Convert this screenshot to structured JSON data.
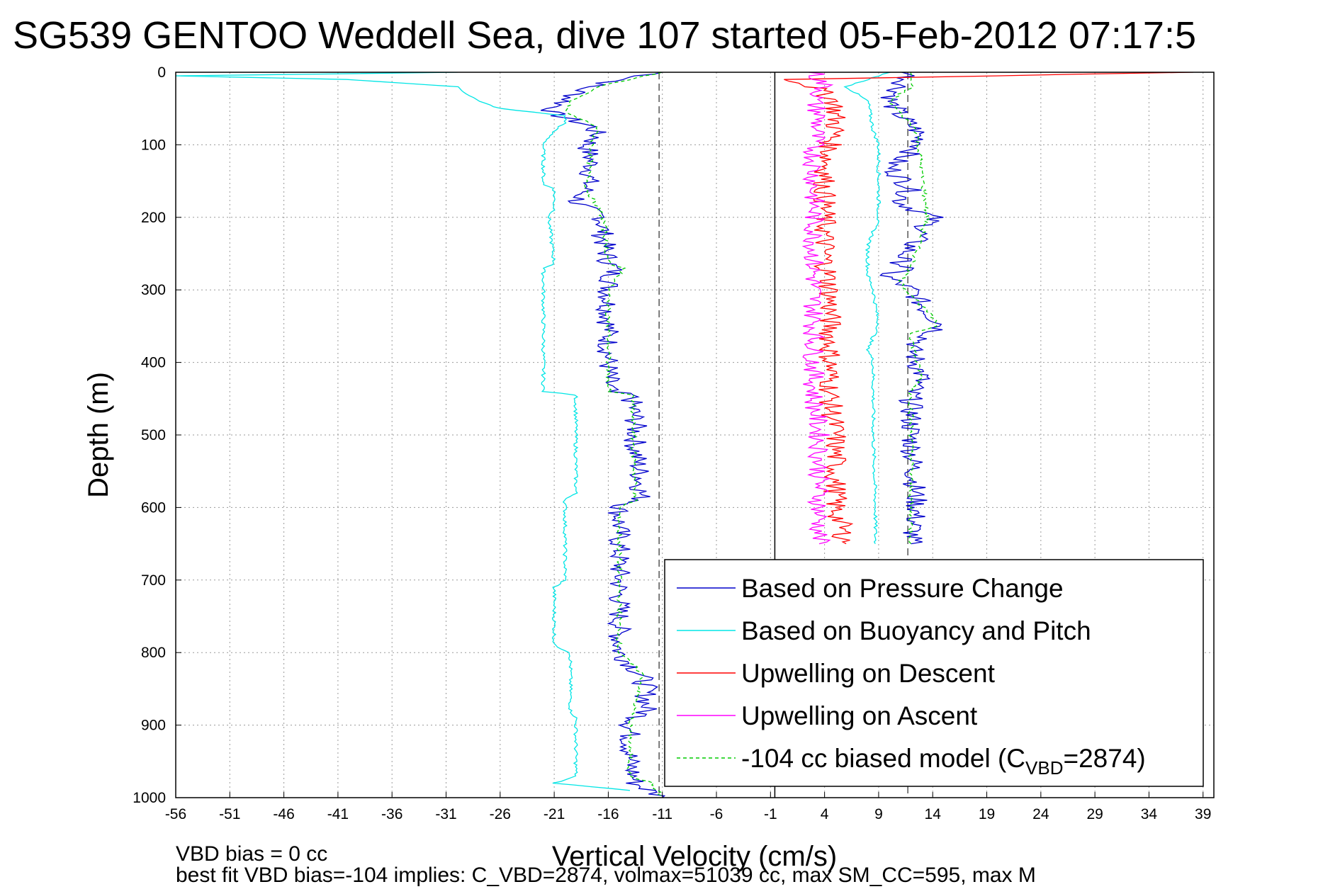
{
  "chart_data": {
    "type": "line",
    "title": "SG539 GENTOO Weddell Sea, dive 107 started 05-Feb-2012 07:17:5",
    "xlabel": "Vertical Velocity (cm/s)",
    "ylabel": "Depth (m)",
    "xlim": [
      -56,
      40
    ],
    "ylim": [
      1000,
      0
    ],
    "y_reversed": true,
    "xticks": [
      -56,
      -51,
      -46,
      -41,
      -36,
      -31,
      -26,
      -21,
      -16,
      -11,
      -6,
      -1,
      4,
      9,
      14,
      19,
      24,
      29,
      34,
      39
    ],
    "yticks": [
      0,
      100,
      200,
      300,
      400,
      500,
      600,
      700,
      800,
      900,
      1000
    ],
    "grid": true,
    "legend_position": "bottom-right",
    "colors": {
      "pressure": "#0000cc",
      "buoyancy": "#00e5e5",
      "descent": "#ff0000",
      "ascent": "#ff00ff",
      "model": "#00cc00",
      "reference": "#555555"
    },
    "reference_lines": [
      {
        "x": -11.3,
        "style": "dashed"
      },
      {
        "x": -0.6,
        "style": "solid"
      },
      {
        "x": 11.7,
        "style": "dashed"
      }
    ],
    "series": [
      {
        "name": "Based on Pressure Change",
        "color": "#0000cc",
        "depth": [
          0,
          20,
          40,
          55,
          75,
          90,
          100,
          130,
          160,
          180,
          200,
          230,
          260,
          270,
          300,
          350,
          400,
          440,
          445,
          480,
          520,
          560,
          590,
          600,
          650,
          700,
          750,
          800,
          830,
          850,
          880,
          900,
          950,
          980,
          1000
        ],
        "velocity": [
          -11,
          -18,
          -20,
          -21.5,
          -17.5,
          -17,
          -18,
          -17.5,
          -18,
          -19,
          -16.5,
          -16.5,
          -16,
          -15.5,
          -16,
          -16,
          -16,
          -16,
          -14,
          -13.5,
          -13.5,
          -13,
          -13,
          -15,
          -15,
          -15,
          -15,
          -15,
          -13,
          -12.5,
          -12.5,
          -14,
          -14,
          -13.5,
          -11
        ],
        "depth_ascent": [
          0,
          20,
          40,
          60,
          80,
          100,
          130,
          160,
          180,
          200,
          230,
          260,
          270,
          280,
          300,
          330,
          350,
          380,
          400,
          420,
          440,
          500,
          600,
          650
        ],
        "velocity_ascent": [
          12,
          11,
          10,
          11,
          12.5,
          13,
          10,
          12,
          11,
          14,
          12.5,
          11,
          11.5,
          9.5,
          12,
          13.5,
          15,
          12,
          12.5,
          13,
          12,
          12,
          12.5,
          12
        ]
      },
      {
        "name": "Based on Buoyancy and Pitch",
        "color": "#00e5e5",
        "depth": [
          0,
          5,
          10,
          20,
          30,
          40,
          50,
          60,
          70,
          80,
          100,
          155,
          160,
          190,
          200,
          265,
          270,
          300,
          400,
          440,
          445,
          500,
          580,
          590,
          600,
          700,
          710,
          790,
          800,
          880,
          890,
          970,
          980,
          990
        ],
        "velocity": [
          -30,
          -56,
          -40,
          -30,
          -29,
          -28,
          -26,
          -20,
          -20,
          -21,
          -22,
          -22,
          -21,
          -21,
          -21.5,
          -21,
          -22,
          -22,
          -22,
          -22,
          -19,
          -19,
          -19,
          -20,
          -20,
          -20,
          -21,
          -21,
          -19.5,
          -19.5,
          -19,
          -19,
          -21,
          -14
        ],
        "depth_ascent": [
          0,
          20,
          40,
          80,
          100,
          130,
          150,
          180,
          200,
          220,
          240,
          260,
          280,
          300,
          350,
          380,
          400,
          500,
          600,
          650
        ],
        "velocity_ascent": [
          10,
          6,
          8,
          8.5,
          9,
          9,
          9,
          9,
          9,
          8.5,
          8,
          8,
          8,
          8.5,
          9,
          8,
          8.5,
          8.5,
          8.7,
          8.7
        ]
      },
      {
        "name": "Upwelling on Descent",
        "color": "#ff0000",
        "depth": [
          0,
          10,
          20,
          40,
          80,
          100,
          150,
          200,
          250,
          300,
          350,
          400,
          450,
          500,
          550,
          600,
          650
        ],
        "velocity": [
          38,
          1,
          3,
          5,
          5,
          4.5,
          4,
          4,
          4,
          4.5,
          4.5,
          4.5,
          4.5,
          5,
          5,
          5,
          6
        ]
      },
      {
        "name": "Upwelling on Ascent",
        "color": "#ff00ff",
        "depth": [
          0,
          20,
          40,
          60,
          100,
          150,
          200,
          250,
          300,
          350,
          400,
          450,
          500,
          550,
          600,
          650
        ],
        "velocity": [
          3,
          4,
          3,
          3.5,
          3,
          3,
          3,
          3,
          3,
          3,
          3,
          3,
          3.5,
          3.5,
          3.5,
          3.5
        ]
      },
      {
        "name": "-104 cc biased model (C",
        "name_subscript": "VBD",
        "name_suffix": "=2874)",
        "color": "#00cc00",
        "depth": [
          0,
          20,
          40,
          55,
          75,
          100,
          160,
          200,
          265,
          270,
          300,
          440,
          445,
          590,
          600,
          800,
          830,
          900,
          970,
          980,
          1000
        ],
        "velocity": [
          -11,
          -17,
          -19.5,
          -20,
          -17,
          -17.5,
          -18,
          -16.5,
          -16,
          -14.5,
          -16,
          -16,
          -13.8,
          -13.5,
          -15,
          -15,
          -12.8,
          -14,
          -14,
          -12,
          -11
        ],
        "depth_ascent": [
          0,
          20,
          40,
          80,
          200,
          270,
          290,
          330,
          350,
          360,
          400,
          420,
          440,
          650
        ],
        "velocity_ascent": [
          12,
          12,
          10,
          12.5,
          13.5,
          12,
          11,
          13.5,
          14.5,
          12,
          12.5,
          13,
          12,
          12
        ]
      }
    ]
  },
  "footer": {
    "line1": "VBD bias = 0 cc",
    "line2": "best fit VBD bias=-104 implies: C_VBD=2874, volmax=51039 cc, max SM_CC=595, max M"
  }
}
